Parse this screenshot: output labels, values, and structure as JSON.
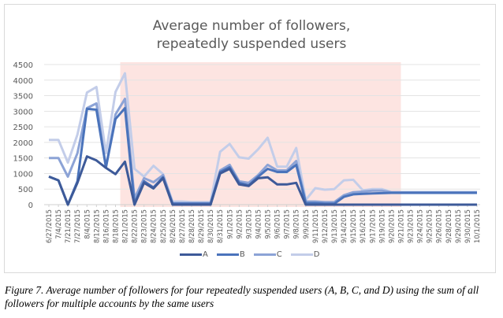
{
  "caption": "Figure 7. Average number of followers for four repeatedly suspended users (A, B, C, and D) using the sum of all followers for multiple accounts by the same users",
  "chart_data": {
    "type": "line",
    "title": "Average number of followers, repeatedly suspended users",
    "title_lines": [
      "Average number of followers,",
      "repeatedly suspended users"
    ],
    "xlabel": "",
    "ylabel": "",
    "ylim": [
      0,
      4500
    ],
    "yticks": [
      0,
      500,
      1000,
      1500,
      2000,
      2500,
      3000,
      3500,
      4000,
      4500
    ],
    "grid": true,
    "legend_position": "bottom",
    "highlight_region": {
      "from": "8/21/2015",
      "to": "9/21/2015",
      "color": "#fde4e1"
    },
    "categories": [
      "6/27/2015",
      "7/4/2015",
      "7/21/2015",
      "7/27/2015",
      "8/4/2015",
      "8/12/2015",
      "8/16/2015",
      "8/18/2015",
      "8/21/2015",
      "8/22/2015",
      "8/23/2015",
      "8/24/2015",
      "8/25/2015",
      "8/26/2015",
      "8/27/2015",
      "8/28/2015",
      "8/29/2015",
      "8/30/2015",
      "8/31/2015",
      "9/1/2015",
      "9/2/2015",
      "9/3/2015",
      "9/4/2015",
      "9/5/2015",
      "9/6/2015",
      "9/7/2015",
      "9/8/2015",
      "9/9/2015",
      "9/11/2015",
      "9/12/2015",
      "9/13/2015",
      "9/14/2015",
      "9/15/2015",
      "9/16/2015",
      "9/17/2015",
      "9/19/2015",
      "9/20/2015",
      "9/21/2015",
      "9/23/2015",
      "9/24/2015",
      "9/25/2015",
      "9/26/2015",
      "9/28/2015",
      "9/29/2015",
      "9/30/2015",
      "10/1/2015"
    ],
    "series": [
      {
        "name": "A",
        "color": "#3d5a99",
        "values": [
          900,
          780,
          0,
          700,
          1550,
          1420,
          1180,
          980,
          1380,
          0,
          700,
          520,
          850,
          0,
          0,
          0,
          0,
          0,
          1000,
          1150,
          650,
          600,
          850,
          880,
          650,
          650,
          700,
          0,
          0,
          0,
          0,
          0,
          0,
          0,
          0,
          0,
          0,
          0,
          0,
          0,
          0,
          0,
          0,
          0,
          0,
          0
        ]
      },
      {
        "name": "B",
        "color": "#4a73bb",
        "values": [
          900,
          780,
          0,
          750,
          3080,
          3050,
          1200,
          2750,
          3100,
          30,
          750,
          550,
          880,
          30,
          30,
          30,
          30,
          30,
          1050,
          1200,
          700,
          620,
          900,
          1150,
          1050,
          1050,
          1280,
          50,
          50,
          30,
          30,
          250,
          330,
          350,
          360,
          370,
          380,
          380,
          380,
          380,
          380,
          380,
          380,
          380,
          380,
          380
        ]
      },
      {
        "name": "C",
        "color": "#8ca3d6",
        "values": [
          1500,
          1500,
          900,
          1650,
          3100,
          3250,
          1200,
          2900,
          3400,
          200,
          850,
          720,
          950,
          50,
          50,
          50,
          50,
          50,
          1100,
          1280,
          750,
          700,
          950,
          1280,
          1100,
          1100,
          1400,
          100,
          100,
          80,
          80,
          300,
          400,
          420,
          450,
          450,
          400,
          400,
          400,
          400,
          400,
          400,
          400,
          400,
          400,
          400
        ]
      },
      {
        "name": "D",
        "color": "#c3cde9",
        "values": [
          2080,
          2080,
          1350,
          2250,
          3600,
          3780,
          1650,
          3620,
          4220,
          1150,
          900,
          1250,
          980,
          100,
          100,
          80,
          80,
          80,
          1700,
          1950,
          1520,
          1480,
          1780,
          2150,
          1220,
          1220,
          1820,
          150,
          530,
          480,
          500,
          780,
          800,
          460,
          500,
          500,
          400,
          400,
          400,
          400,
          400,
          400,
          400,
          400,
          400,
          400
        ]
      }
    ]
  }
}
